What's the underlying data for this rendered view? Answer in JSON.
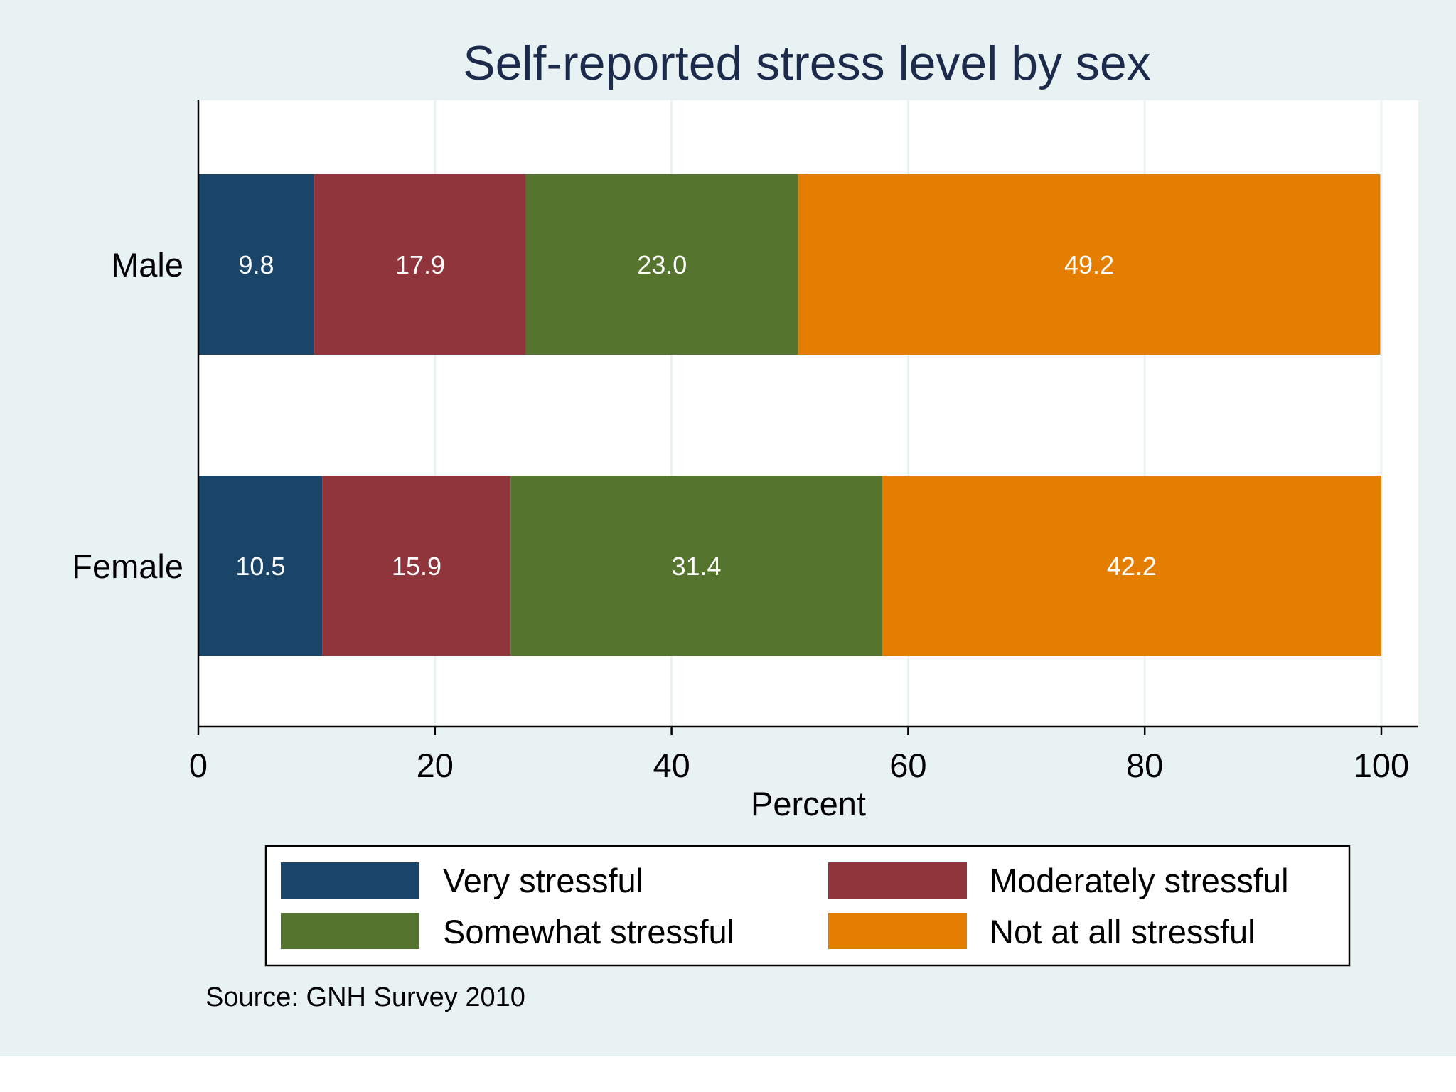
{
  "chart_data": {
    "type": "bar",
    "orientation": "horizontal",
    "stacked": true,
    "title": "Self-reported stress level by sex",
    "xlabel": "Percent",
    "ylabel": "",
    "categories": [
      "Male",
      "Female"
    ],
    "series": [
      {
        "name": "Very stressful",
        "color": "#1a4569",
        "values": [
          9.8,
          10.5
        ],
        "labels": [
          "9.8",
          "10.5"
        ]
      },
      {
        "name": "Moderately stressful",
        "color": "#90353b",
        "values": [
          17.9,
          15.9
        ],
        "labels": [
          "17.9",
          "15.9"
        ]
      },
      {
        "name": "Somewhat stressful",
        "color": "#55752f",
        "values": [
          23.0,
          31.4
        ],
        "labels": [
          "23.0",
          "31.4"
        ]
      },
      {
        "name": "Not at all stressful",
        "color": "#e37e00",
        "values": [
          49.2,
          42.2
        ],
        "labels": [
          "49.2",
          "42.2"
        ]
      }
    ],
    "xlim": [
      0,
      100
    ],
    "xticks": [
      0,
      20,
      40,
      60,
      80,
      100
    ],
    "xtick_labels": [
      "0",
      "20",
      "40",
      "60",
      "80",
      "100"
    ],
    "grid": true,
    "legend_placement": "bottom",
    "note": "Source: GNH Survey 2010"
  }
}
